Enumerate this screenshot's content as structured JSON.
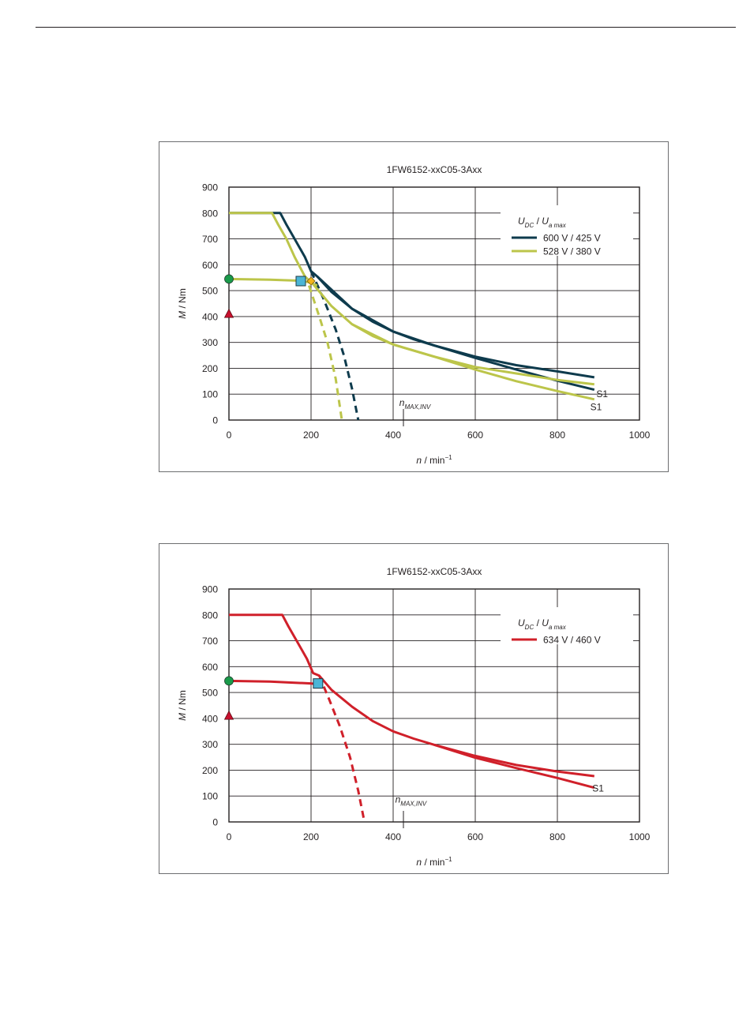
{
  "chart_data": [
    {
      "type": "line",
      "title": "1FW6152-xxC05-3Axx",
      "xlabel": {
        "var": "n",
        "unit": " / min",
        "sup": "−1"
      },
      "ylabel": {
        "var": "M",
        "unit": " / Nm"
      },
      "xlim": [
        0,
        1000
      ],
      "ylim": [
        0,
        900
      ],
      "xticks": [
        "0",
        "200",
        "400",
        "600",
        "800",
        "1000"
      ],
      "yticks": [
        "0",
        "100",
        "200",
        "300",
        "400",
        "500",
        "600",
        "700",
        "800",
        "900"
      ],
      "grid": true,
      "legend": {
        "placement": "top-right",
        "header": {
          "u1": "U",
          "s1": "DC",
          "sep": " / ",
          "u2": "U",
          "s2": "a max"
        },
        "entries": [
          {
            "label": "600 V / 425 V",
            "color": "#0e3b4d"
          },
          {
            "label": "528 V / 380 V",
            "color": "#bcc54a"
          }
        ]
      },
      "series": [
        {
          "color": "#0e3b4d",
          "style": "solid",
          "x": [
            0,
            125,
            140,
            160,
            185,
            200,
            215,
            250,
            300,
            350,
            400,
            450,
            500,
            600,
            700,
            800,
            890
          ],
          "y": [
            800,
            800,
            755,
            700,
            630,
            575,
            555,
            495,
            430,
            380,
            342,
            312,
            288,
            245,
            212,
            188,
            165
          ]
        },
        {
          "color": "#0e3b4d",
          "style": "solid",
          "x": [
            215,
            300,
            400,
            500,
            600,
            700,
            800,
            890
          ],
          "y": [
            555,
            430,
            342,
            288,
            240,
            195,
            152,
            117
          ]
        },
        {
          "color": "#0e3b4d",
          "style": "dashed",
          "x": [
            200,
            230,
            260,
            280,
            300,
            315
          ],
          "y": [
            575,
            470,
            350,
            250,
            120,
            0
          ]
        },
        {
          "color": "#bcc54a",
          "style": "solid",
          "x": [
            0,
            105,
            120,
            140,
            160,
            185,
            205,
            250,
            300,
            350,
            400,
            500,
            600,
            700,
            800,
            890
          ],
          "y": [
            800,
            800,
            755,
            700,
            630,
            555,
            525,
            440,
            370,
            325,
            292,
            245,
            205,
            180,
            155,
            138
          ]
        },
        {
          "color": "#bcc54a",
          "style": "solid",
          "x": [
            300,
            400,
            500,
            600,
            700,
            800,
            890
          ],
          "y": [
            370,
            292,
            245,
            195,
            150,
            112,
            80
          ]
        },
        {
          "color": "#bcc54a",
          "style": "dashed",
          "x": [
            195,
            220,
            240,
            260,
            275
          ],
          "y": [
            520,
            400,
            300,
            160,
            0
          ]
        },
        {
          "color": "#bcc54a",
          "style": "solid",
          "x": [
            0,
            100,
            180,
            200,
            215
          ],
          "y": [
            545,
            542,
            538,
            530,
            520
          ]
        }
      ],
      "markers": [
        {
          "shape": "circle",
          "x": 0,
          "y": 545,
          "color": "#1a9a4a"
        },
        {
          "shape": "triangle",
          "x": 0,
          "y": 410,
          "color": "#c8102e"
        },
        {
          "shape": "square",
          "x": 175,
          "y": 537,
          "color": "#4bb5d6"
        },
        {
          "shape": "diamond",
          "x": 200,
          "y": 537,
          "color": "#f2b51c"
        }
      ],
      "annotations": [
        {
          "text": "S1",
          "x": 895,
          "y": 100
        },
        {
          "text": "S1",
          "x": 880,
          "y": 50
        },
        {
          "text": "n",
          "sub": "MAX,INV",
          "x": 415,
          "y": 55,
          "tick_x": 425
        }
      ]
    },
    {
      "type": "line",
      "title": "1FW6152-xxC05-3Axx",
      "xlabel": {
        "var": "n",
        "unit": " / min",
        "sup": "−1"
      },
      "ylabel": {
        "var": "M",
        "unit": " / Nm"
      },
      "xlim": [
        0,
        1000
      ],
      "ylim": [
        0,
        900
      ],
      "xticks": [
        "0",
        "200",
        "400",
        "600",
        "800",
        "1000"
      ],
      "yticks": [
        "0",
        "100",
        "200",
        "300",
        "400",
        "500",
        "600",
        "700",
        "800",
        "900"
      ],
      "grid": true,
      "legend": {
        "placement": "top-right",
        "header": {
          "u1": "U",
          "s1": "DC",
          "sep": " / ",
          "u2": "U",
          "s2": "a max"
        },
        "entries": [
          {
            "label": "634 V / 460 V",
            "color": "#d0202a"
          }
        ]
      },
      "series": [
        {
          "color": "#d0202a",
          "style": "solid",
          "x": [
            0,
            130,
            145,
            165,
            190,
            205,
            220,
            250,
            300,
            350,
            400,
            450,
            500,
            600,
            700,
            800,
            890
          ],
          "y": [
            800,
            800,
            755,
            700,
            630,
            575,
            565,
            510,
            445,
            390,
            350,
            322,
            298,
            255,
            220,
            195,
            177
          ]
        },
        {
          "color": "#d0202a",
          "style": "solid",
          "x": [
            0,
            100,
            200,
            215
          ],
          "y": [
            545,
            542,
            535,
            532
          ]
        },
        {
          "color": "#d0202a",
          "style": "solid",
          "x": [
            500,
            600,
            700,
            800,
            890
          ],
          "y": [
            298,
            248,
            208,
            170,
            132
          ]
        },
        {
          "color": "#d0202a",
          "style": "dashed",
          "x": [
            220,
            245,
            270,
            295,
            315,
            330
          ],
          "y": [
            565,
            470,
            370,
            250,
            120,
            0
          ]
        }
      ],
      "markers": [
        {
          "shape": "circle",
          "x": 0,
          "y": 545,
          "color": "#1a9a4a"
        },
        {
          "shape": "triangle",
          "x": 0,
          "y": 410,
          "color": "#c8102e"
        },
        {
          "shape": "square",
          "x": 217,
          "y": 535,
          "color": "#4bb5d6"
        }
      ],
      "annotations": [
        {
          "text": "S1",
          "x": 885,
          "y": 130
        },
        {
          "text": "n",
          "sub": "MAX,INV",
          "x": 405,
          "y": 75,
          "tick_x": 425
        }
      ]
    }
  ]
}
